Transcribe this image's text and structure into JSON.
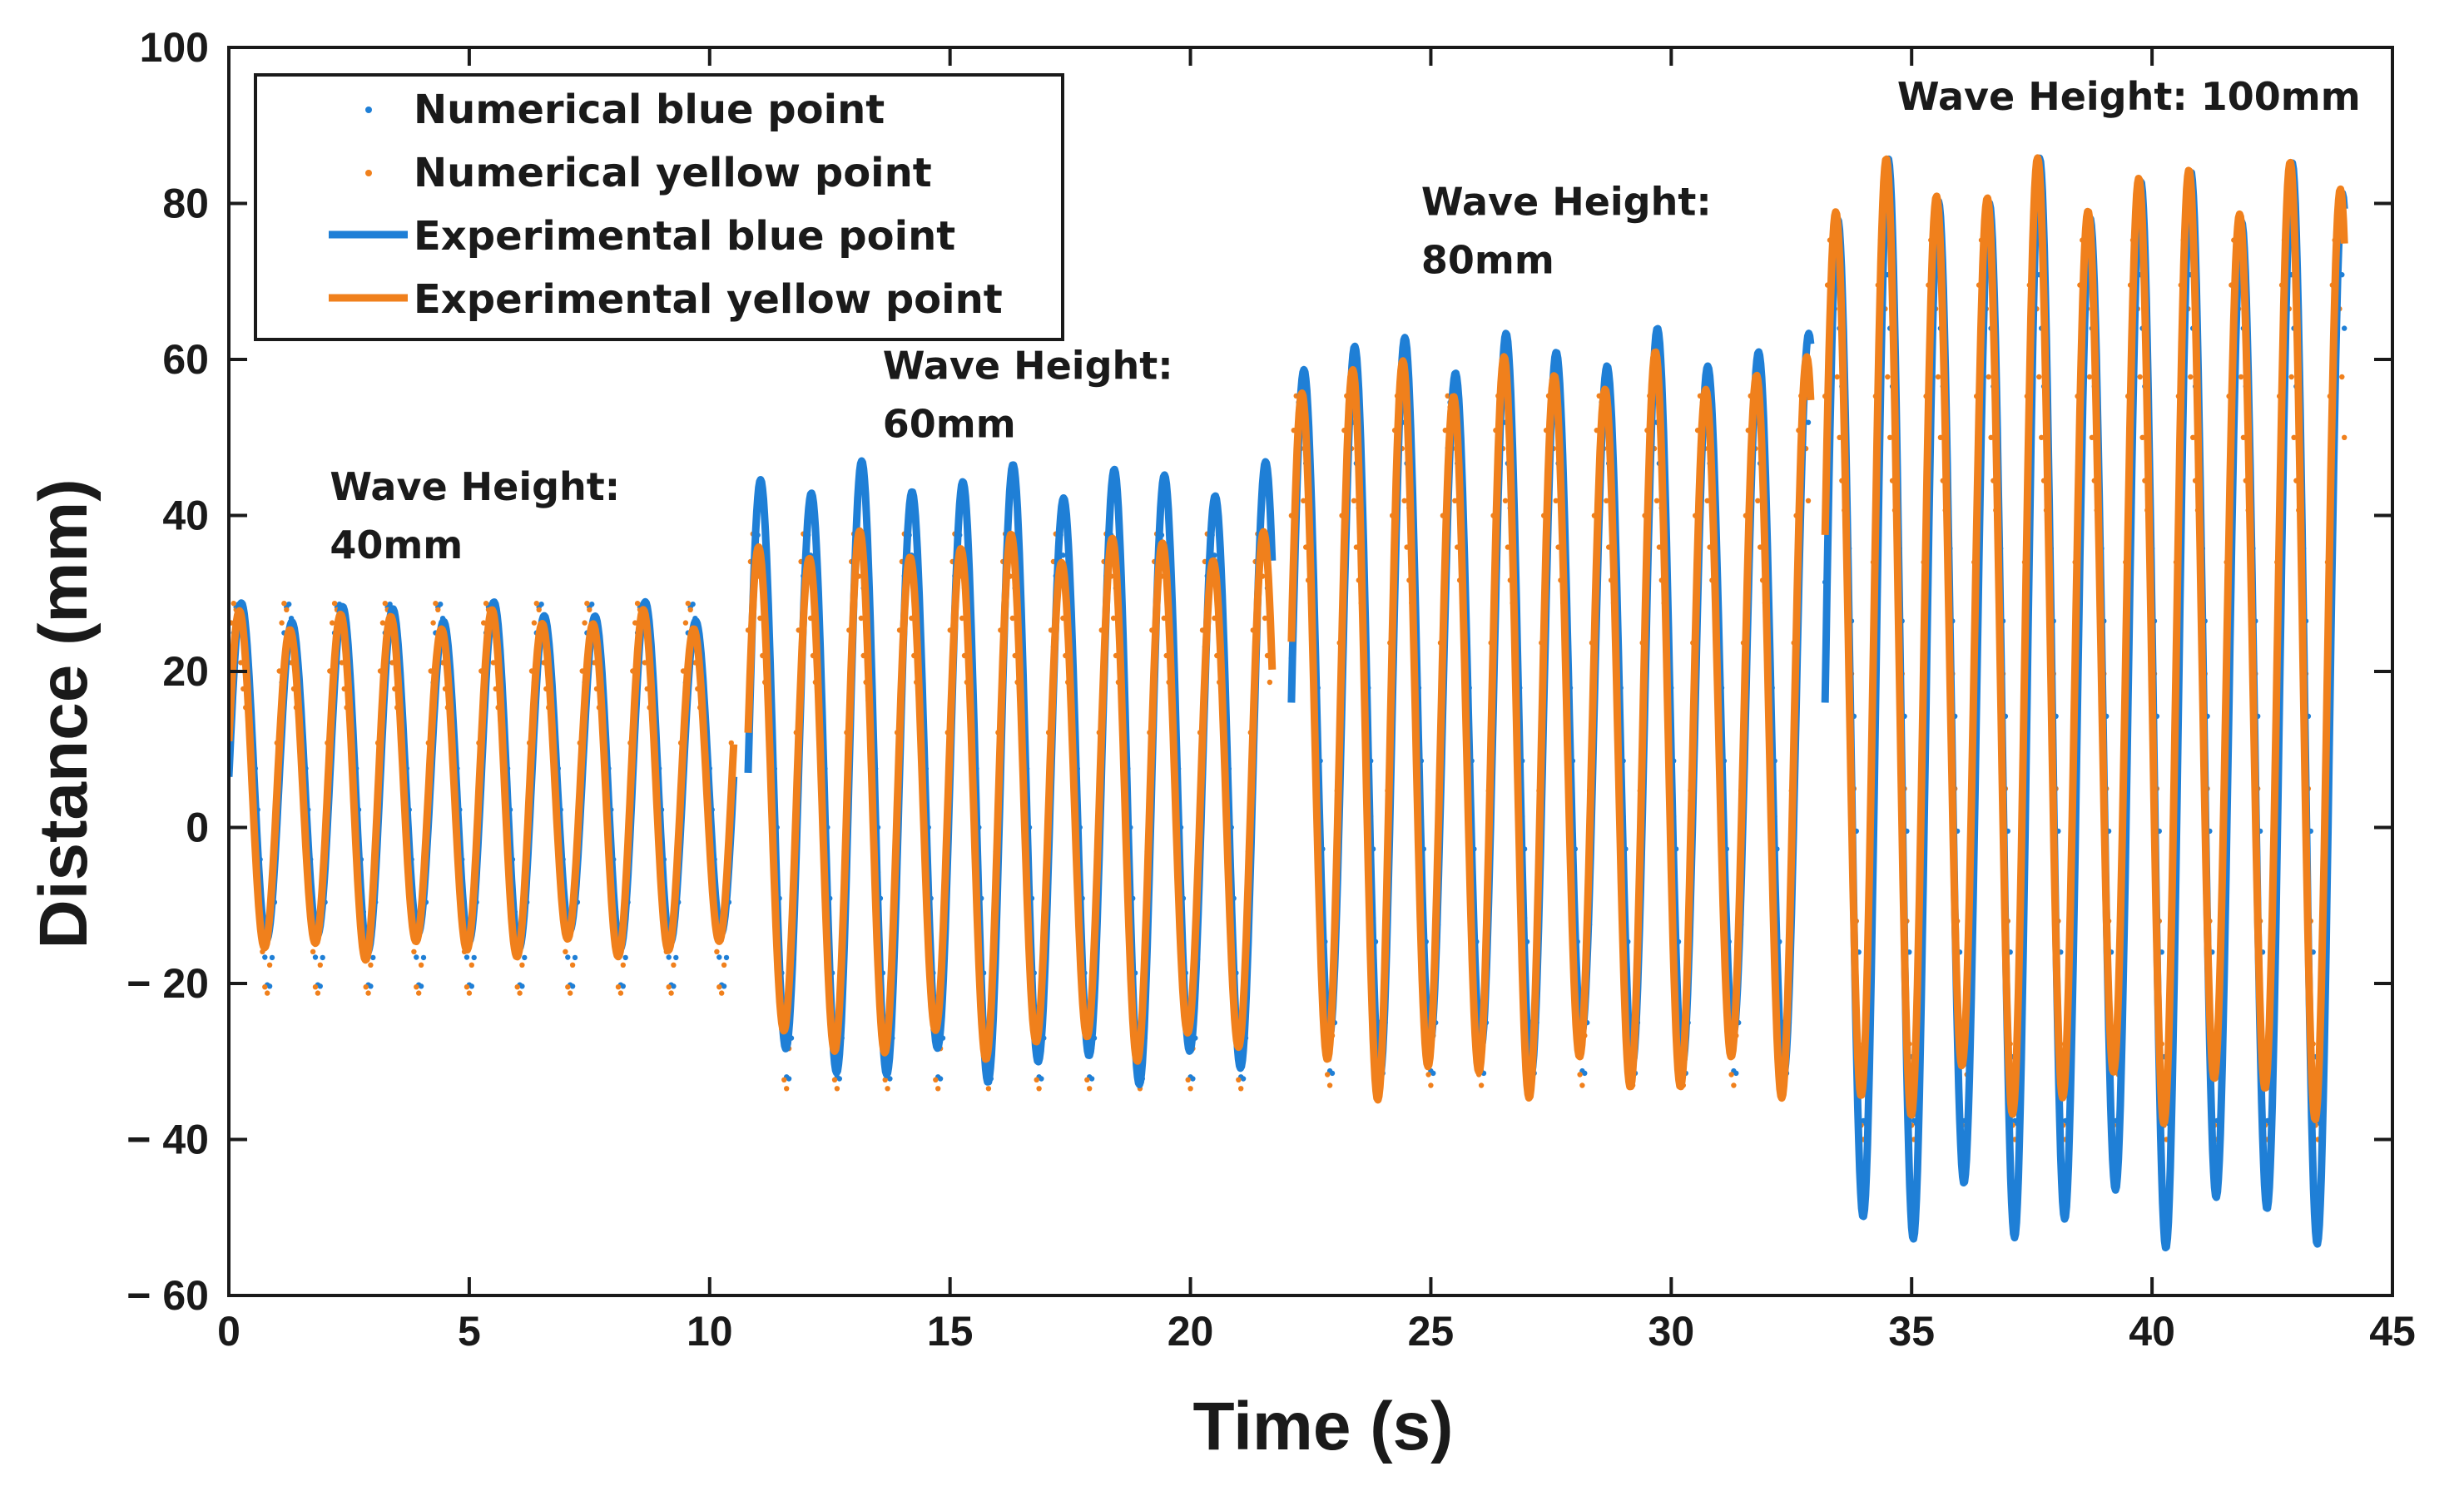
{
  "chart_data": {
    "type": "line",
    "xlabel": "Time (s)",
    "ylabel": "Distance (mm)",
    "xlim": [
      0,
      45
    ],
    "ylim": [
      -60,
      100
    ],
    "x_ticks": [
      "0",
      "5",
      "10",
      "15",
      "20",
      "25",
      "30",
      "35",
      "40",
      "45"
    ],
    "y_ticks": [
      "− 60",
      "− 40",
      "− 20",
      "0",
      "20",
      "40",
      "60",
      "80",
      "100"
    ],
    "grid": false,
    "legend_position": "top-left",
    "legend": [
      {
        "label": "Numerical blue point",
        "style": "dots",
        "color": "#1f7fd6"
      },
      {
        "label": "Numerical yellow point",
        "style": "dots",
        "color": "#f0801c"
      },
      {
        "label": "Experimental blue point",
        "style": "line",
        "color": "#1f7fd6"
      },
      {
        "label": "Experimental yellow point",
        "style": "line",
        "color": "#f0801c"
      }
    ],
    "annotations": [
      {
        "lines": [
          "Wave Height:",
          "40mm"
        ],
        "x": 2.1,
        "y": 42
      },
      {
        "lines": [
          "Wave Height:",
          "60mm"
        ],
        "x": 13.6,
        "y": 57.5
      },
      {
        "lines": [
          "Wave Height:",
          "80mm"
        ],
        "x": 24.8,
        "y": 78.5
      },
      {
        "lines": [
          "Wave Height: 100mm"
        ],
        "x": 34.7,
        "y": 92
      }
    ],
    "segments": [
      {
        "wave_height": "40mm",
        "t_start": 0.0,
        "t_end": 10.5,
        "period": 1.05,
        "blue": {
          "mean": 6.5,
          "amp": 22.5
        },
        "yellow": {
          "mean": 5.5,
          "amp": 22.5
        },
        "numerical_blue": {
          "mean": 6.5,
          "amp": 26
        },
        "numerical_yellow": {
          "mean": 6.5,
          "amp": 26
        }
      },
      {
        "wave_height": "60mm",
        "t_start": 10.8,
        "t_end": 21.7,
        "period": 1.05,
        "blue": {
          "mean": 7,
          "amp": 40
        },
        "yellow": {
          "mean": 4,
          "amp": 34
        },
        "numerical_blue": {
          "mean": 6,
          "amp": 37
        },
        "numerical_yellow": {
          "mean": 6,
          "amp": 37
        }
      },
      {
        "wave_height": "80mm",
        "t_start": 22.1,
        "t_end": 32.9,
        "period": 1.05,
        "blue": {
          "mean": 16,
          "amp": 48
        },
        "yellow": {
          "mean": 13,
          "amp": 48
        },
        "numerical_blue": {
          "mean": 16,
          "amp": 46
        },
        "numerical_yellow": {
          "mean": 16,
          "amp": 46
        }
      },
      {
        "wave_height": "100mm",
        "t_start": 33.2,
        "t_end": 44.0,
        "period": 1.05,
        "blue": {
          "mean": 16,
          "amp": 70
        },
        "yellow": {
          "mean": 24,
          "amp": 62
        },
        "numerical_blue": {
          "mean": 24,
          "amp": 60
        },
        "numerical_yellow": {
          "mean": 24,
          "amp": 60
        }
      }
    ]
  }
}
